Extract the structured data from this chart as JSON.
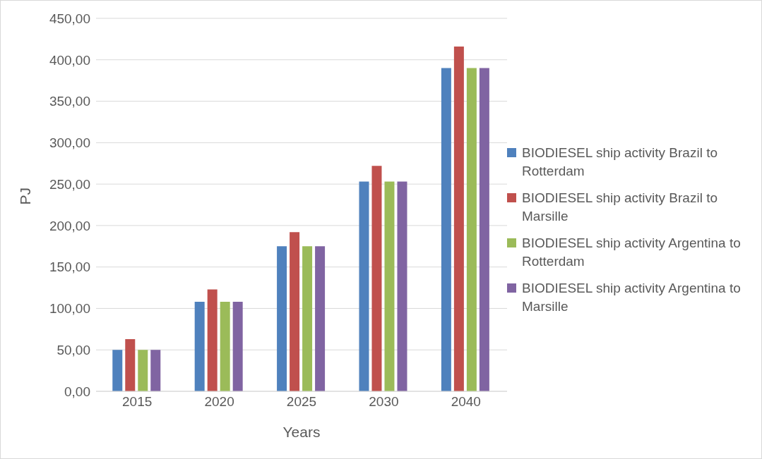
{
  "chart_data": {
    "type": "bar",
    "xlabel": "Years",
    "ylabel": "PJ",
    "categories": [
      "2015",
      "2020",
      "2025",
      "2030",
      "2040"
    ],
    "series": [
      {
        "name": "BIODIESEL ship activity Brazil to Rotterdam",
        "color": "#4f81bd",
        "values": [
          50,
          108,
          175,
          253,
          390
        ]
      },
      {
        "name": "BIODIESEL ship activity Brazil to Marsille",
        "color": "#c0504d",
        "values": [
          63,
          123,
          192,
          272,
          416
        ]
      },
      {
        "name": "BIODIESEL ship activity Argentina to Rotterdam",
        "color": "#9bbb59",
        "values": [
          50,
          108,
          175,
          253,
          390
        ]
      },
      {
        "name": "BIODIESEL ship activity Argentina to Marsille",
        "color": "#8064a2",
        "values": [
          50,
          108,
          175,
          253,
          390
        ]
      }
    ],
    "ylim": [
      0,
      450
    ],
    "yticks": [
      {
        "value": 0,
        "label": "0,00"
      },
      {
        "value": 50,
        "label": "50,00"
      },
      {
        "value": 100,
        "label": "100,00"
      },
      {
        "value": 150,
        "label": "150,00"
      },
      {
        "value": 200,
        "label": "200,00"
      },
      {
        "value": 250,
        "label": "250,00"
      },
      {
        "value": 300,
        "label": "300,00"
      },
      {
        "value": 350,
        "label": "350,00"
      },
      {
        "value": 400,
        "label": "400,00"
      },
      {
        "value": 450,
        "label": "450,00"
      }
    ],
    "grid": "y",
    "legend": "right"
  }
}
